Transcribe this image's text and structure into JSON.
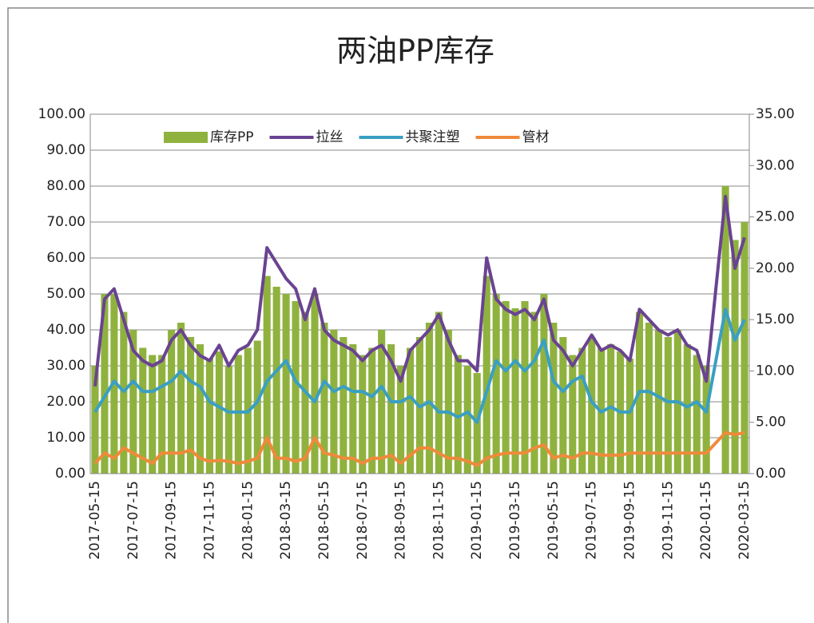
{
  "chart_data": {
    "type": "bar_line",
    "title": "两油PP库存",
    "categories": [
      "2017-05-15",
      null,
      null,
      null,
      "2017-07-15",
      null,
      null,
      null,
      "2017-09-15",
      null,
      null,
      null,
      "2017-11-15",
      null,
      null,
      null,
      "2018-01-15",
      null,
      null,
      null,
      "2018-03-15",
      null,
      null,
      null,
      "2018-05-15",
      null,
      null,
      null,
      "2018-07-15",
      null,
      null,
      null,
      "2018-09-15",
      null,
      null,
      null,
      "2018-11-15",
      null,
      null,
      null,
      "2019-01-15",
      null,
      null,
      null,
      "2019-03-15",
      null,
      null,
      null,
      "2019-05-15",
      null,
      null,
      null,
      "2019-07-15",
      null,
      null,
      null,
      "2019-09-15",
      null,
      null,
      null,
      "2019-11-15",
      null,
      null,
      null,
      "2020-01-15",
      null,
      null,
      null,
      "2020-03-15"
    ],
    "series": [
      {
        "name": "库存PP",
        "type": "bar",
        "color": "#8fb23e",
        "axis": "y",
        "values": [
          30,
          50,
          50,
          45,
          40,
          35,
          33,
          33,
          40,
          42,
          38,
          36,
          32,
          34,
          30,
          33,
          35,
          37,
          55,
          52,
          50,
          48,
          45,
          50,
          42,
          40,
          38,
          36,
          33,
          35,
          40,
          36,
          30,
          35,
          38,
          42,
          45,
          40,
          33,
          30,
          28,
          55,
          50,
          48,
          46,
          48,
          45,
          50,
          42,
          38,
          33,
          35,
          38,
          35,
          36,
          34,
          32,
          45,
          42,
          40,
          38,
          40,
          36,
          33,
          30,
          null,
          80,
          65,
          70
        ]
      },
      {
        "name": "拉丝",
        "type": "line",
        "color": "#6a4391",
        "axis": "y2",
        "values": [
          8.5,
          17,
          18,
          15,
          12,
          11,
          10.5,
          11,
          13,
          14,
          12.5,
          11.5,
          11,
          12.5,
          10.5,
          12,
          12.5,
          14,
          22,
          20.5,
          19,
          18,
          15,
          18,
          14,
          13,
          12.5,
          12,
          11,
          12,
          12.5,
          11,
          9,
          12,
          13,
          14,
          15.5,
          13,
          11,
          11,
          10,
          21,
          17,
          16,
          15.5,
          16,
          15,
          17,
          13,
          12,
          10.5,
          12,
          13.5,
          12,
          12.5,
          12,
          11,
          16,
          15,
          14,
          13.5,
          14,
          12.5,
          12,
          9,
          18,
          27,
          20,
          23
        ]
      },
      {
        "name": "共聚注塑",
        "type": "line",
        "color": "#3a9fc2",
        "axis": "y2",
        "values": [
          6,
          7.5,
          9,
          8,
          9,
          8,
          8,
          8.5,
          9,
          10,
          9,
          8.5,
          7,
          6.5,
          6,
          6,
          6,
          7,
          9,
          10,
          11,
          9,
          8,
          7,
          9,
          8,
          8.5,
          8,
          8,
          7.5,
          8.5,
          7,
          7,
          7.5,
          6.5,
          7,
          6,
          6,
          5.5,
          6,
          5,
          8,
          11,
          10,
          11,
          10,
          11,
          13,
          9,
          8,
          9,
          9.5,
          7,
          6,
          6.5,
          6,
          6,
          8,
          8,
          7.5,
          7,
          7,
          6.5,
          7,
          6,
          11,
          16,
          13,
          15
        ]
      },
      {
        "name": "管材",
        "type": "line",
        "color": "#ef8a3a",
        "axis": "y2",
        "values": [
          1,
          2,
          1.5,
          2.5,
          2,
          1.5,
          1,
          2,
          2,
          2,
          2.3,
          1.5,
          1.2,
          1.3,
          1.2,
          1,
          1.2,
          1.5,
          3.5,
          1.5,
          1.5,
          1.2,
          1.5,
          3.5,
          2,
          1.8,
          1.5,
          1.5,
          1,
          1.5,
          1.5,
          1.8,
          1,
          1.8,
          2.5,
          2.5,
          2,
          1.5,
          1.5,
          1.2,
          0.8,
          1.5,
          1.8,
          2,
          2,
          2,
          2.5,
          2.8,
          1.5,
          1.8,
          1.5,
          2,
          2,
          1.8,
          1.8,
          1.8,
          2,
          2,
          2,
          2,
          2,
          2,
          2,
          2,
          2,
          3,
          4,
          3.8,
          4
        ]
      }
    ],
    "ylim": [
      0,
      100
    ],
    "yticks": [
      {
        "value": 0,
        "label": "0.00"
      },
      {
        "value": 10,
        "label": "10.00"
      },
      {
        "value": 20,
        "label": "20.00"
      },
      {
        "value": 30,
        "label": "30.00"
      },
      {
        "value": 40,
        "label": "40.00"
      },
      {
        "value": 50,
        "label": "50.00"
      },
      {
        "value": 60,
        "label": "60.00"
      },
      {
        "value": 70,
        "label": "70.00"
      },
      {
        "value": 80,
        "label": "80.00"
      },
      {
        "value": 90,
        "label": "90.00"
      },
      {
        "value": 100,
        "label": "100.00"
      }
    ],
    "y2lim": [
      0,
      35
    ],
    "y2ticks": [
      {
        "value": 0,
        "label": "0.00"
      },
      {
        "value": 5,
        "label": "5.00"
      },
      {
        "value": 10,
        "label": "10.00"
      },
      {
        "value": 15,
        "label": "15.00"
      },
      {
        "value": 20,
        "label": "20.00"
      },
      {
        "value": 25,
        "label": "25.00"
      },
      {
        "value": 30,
        "label": "30.00"
      },
      {
        "value": 35,
        "label": "35.00"
      }
    ],
    "grid": true,
    "legend": "top"
  }
}
